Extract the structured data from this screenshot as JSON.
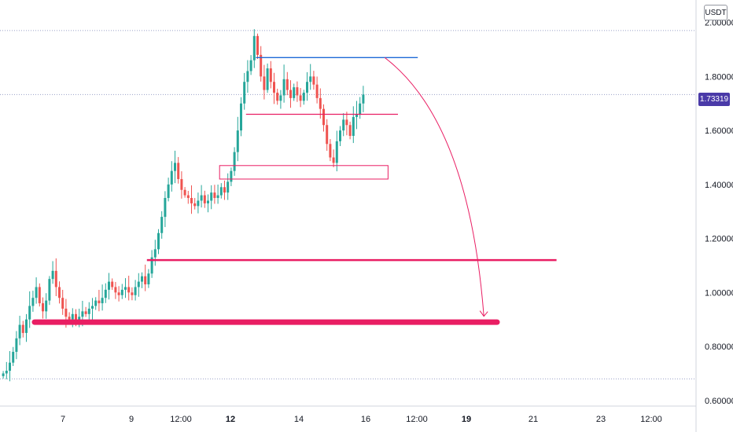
{
  "currency": "USDT",
  "last_price_label": "1.73319",
  "colors": {
    "up": "#26a69a",
    "down": "#ef5350",
    "annotation": "#e91e63",
    "level_blue": "#1e6ad6",
    "price_label_bg": "#4a3aa8",
    "grid_dotted": "#9aa0c8"
  },
  "chart_data": {
    "type": "candlestick",
    "y_axis": {
      "side": "right",
      "ticks": [
        "2.00000",
        "1.80000",
        "1.60000",
        "1.40000",
        "1.20000",
        "1.00000",
        "0.80000",
        "0.60000"
      ],
      "tick_values": [
        2.0,
        1.8,
        1.6,
        1.4,
        1.2,
        1.0,
        0.8,
        0.6
      ],
      "range": [
        0.55,
        2.06
      ]
    },
    "x_axis": {
      "ticks": [
        {
          "label": "7",
          "bold": false
        },
        {
          "label": "9",
          "bold": false
        },
        {
          "label": "12:00",
          "bold": false
        },
        {
          "label": "12",
          "bold": true
        },
        {
          "label": "14",
          "bold": false
        },
        {
          "label": "16",
          "bold": false
        },
        {
          "label": "12:00",
          "bold": false
        },
        {
          "label": "19",
          "bold": true
        },
        {
          "label": "21",
          "bold": false
        },
        {
          "label": "23",
          "bold": false
        },
        {
          "label": "12:00",
          "bold": false
        }
      ]
    },
    "last_price": 1.73319,
    "dotted_levels": [
      1.97,
      1.733,
      0.68
    ],
    "series": [
      {
        "kind": "price_path",
        "closes": [
          0.7,
          0.71,
          0.74,
          0.78,
          0.83,
          0.88,
          0.85,
          0.9,
          0.95,
          0.98,
          1.02,
          0.96,
          0.93,
          0.97,
          1.05,
          1.08,
          1.02,
          0.98,
          0.94,
          0.91,
          0.9,
          0.92,
          0.89,
          0.91,
          0.93,
          0.92,
          0.94,
          0.95,
          0.97,
          0.96,
          0.98,
          1.01,
          1.04,
          1.02,
          1.0,
          0.99,
          1.01,
          1.02,
          1.0,
          0.99,
          1.02,
          1.04,
          1.06,
          1.03,
          1.07,
          1.13,
          1.16,
          1.22,
          1.28,
          1.35,
          1.4,
          1.45,
          1.48,
          1.42,
          1.38,
          1.36,
          1.35,
          1.33,
          1.32,
          1.34,
          1.36,
          1.33,
          1.34,
          1.37,
          1.35,
          1.36,
          1.39,
          1.37,
          1.41,
          1.45,
          1.52,
          1.6,
          1.7,
          1.78,
          1.82,
          1.86,
          1.95,
          1.88,
          1.8,
          1.75,
          1.83,
          1.78,
          1.74,
          1.71,
          1.73,
          1.79,
          1.75,
          1.72,
          1.76,
          1.73,
          1.71,
          1.74,
          1.78,
          1.8,
          1.77,
          1.72,
          1.68,
          1.62,
          1.55,
          1.5,
          1.48,
          1.56,
          1.6,
          1.64,
          1.62,
          1.58,
          1.65,
          1.66,
          1.7,
          1.733
        ]
      }
    ],
    "annotations": [
      {
        "type": "hline",
        "color": "blue",
        "price": 1.87,
        "from_index": 77,
        "to_index": 126
      },
      {
        "type": "hline",
        "color": "pink",
        "price": 1.66,
        "from_index": 74,
        "to_index": 120
      },
      {
        "type": "rect",
        "color": "pink",
        "price_top": 1.47,
        "price_bottom": 1.42,
        "from_index": 66,
        "to_index": 117
      },
      {
        "type": "hline",
        "color": "pink",
        "price": 1.12,
        "from_index": 44,
        "to_index": 168
      },
      {
        "type": "hline",
        "color": "pink_thick",
        "price": 0.89,
        "from_index": 10,
        "to_index": 150
      },
      {
        "type": "arrow",
        "color": "pink",
        "from_index": 116,
        "from_price": 1.87,
        "to_index": 146,
        "to_price": 0.9
      }
    ]
  }
}
